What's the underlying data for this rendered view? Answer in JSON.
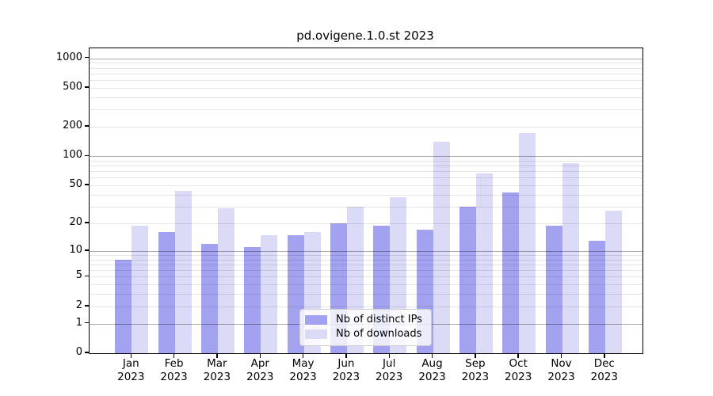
{
  "chart_data": {
    "type": "bar",
    "title": "pd.ovigene.1.0.st 2023",
    "year_label": "2023",
    "categories": [
      "Jan",
      "Feb",
      "Mar",
      "Apr",
      "May",
      "Jun",
      "Jul",
      "Aug",
      "Sep",
      "Oct",
      "Nov",
      "Dec"
    ],
    "series": [
      {
        "name": "Nb of distinct IPs",
        "color": "#a2a2f0",
        "values": [
          8,
          16,
          12,
          11,
          15,
          20,
          19,
          17,
          30,
          42,
          19,
          13
        ]
      },
      {
        "name": "Nb of downloads",
        "color": "#dbdbf8",
        "values": [
          19,
          44,
          29,
          15,
          16,
          30,
          38,
          140,
          66,
          174,
          85,
          27
        ]
      }
    ],
    "yticks": [
      0,
      1,
      2,
      5,
      10,
      20,
      50,
      100,
      200,
      500,
      1000
    ],
    "ylim": [
      0,
      1260
    ],
    "yscale": "log1p",
    "grid": true,
    "legend_position": "lower-center",
    "axis_color": "#000000",
    "major_grid_values": [
      1,
      10,
      100,
      1000
    ],
    "minor_grid_values": [
      2,
      3,
      4,
      5,
      6,
      7,
      8,
      9,
      20,
      30,
      40,
      50,
      60,
      70,
      80,
      90,
      200,
      300,
      400,
      500,
      600,
      700,
      800,
      900
    ]
  }
}
